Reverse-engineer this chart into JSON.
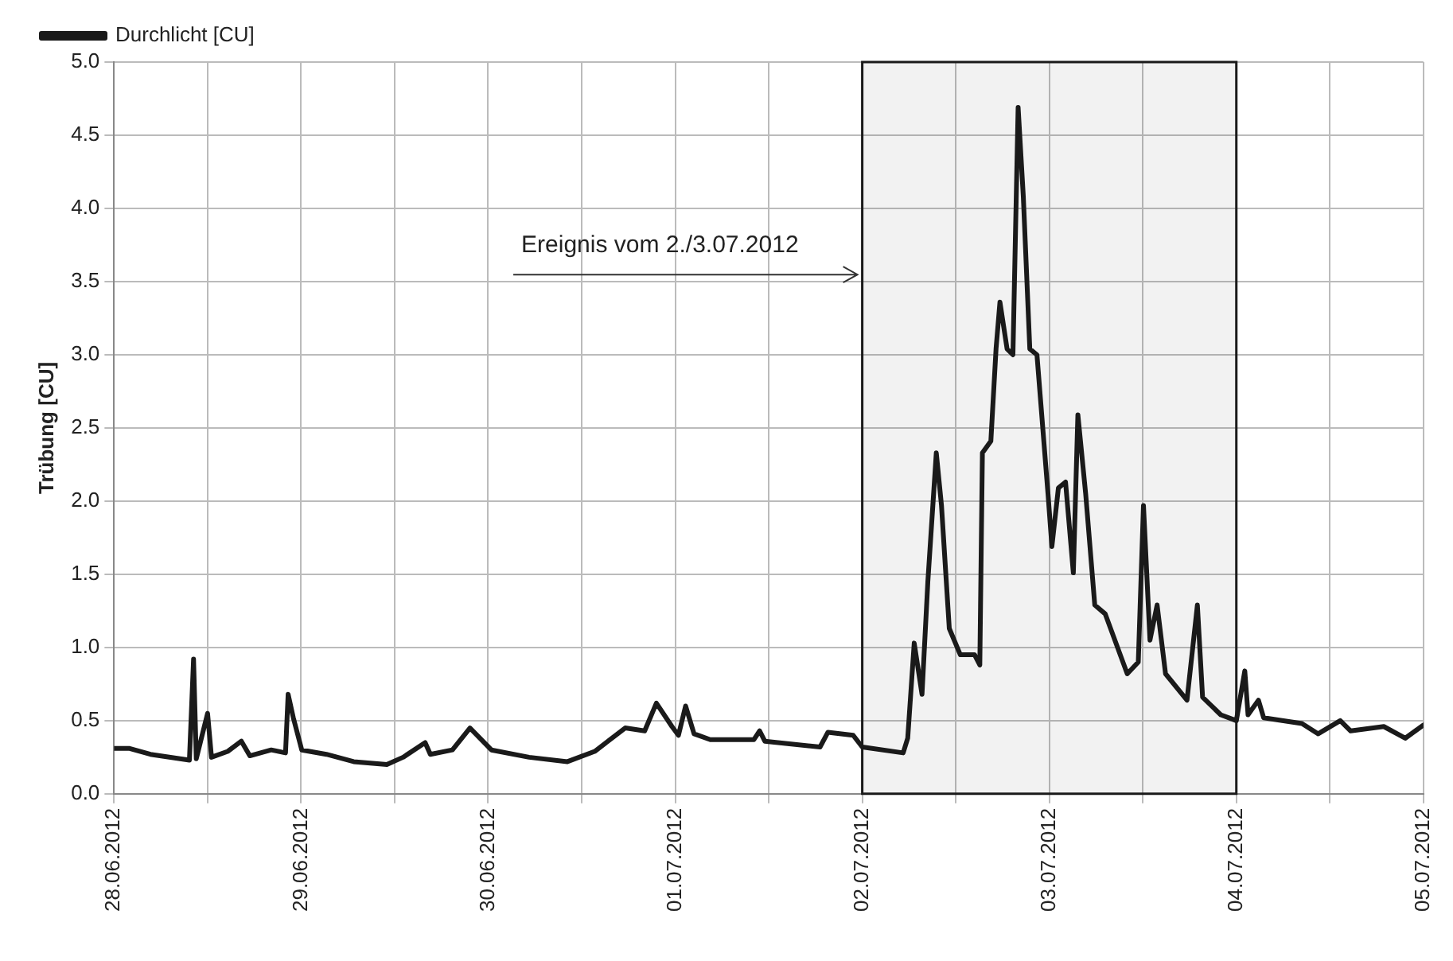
{
  "chart_data": {
    "type": "line",
    "ylabel": "Trübung [CU]",
    "x": [
      "2012-06-28T00:00",
      "2012-06-28T02:00",
      "2012-06-28T04:40",
      "2012-06-28T09:40",
      "2012-06-28T10:12",
      "2012-06-28T10:33",
      "2012-06-28T12:00",
      "2012-06-28T12:30",
      "2012-06-28T14:35",
      "2012-06-28T16:20",
      "2012-06-28T17:25",
      "2012-06-28T20:10",
      "2012-06-28T22:00",
      "2012-06-28T22:20",
      "2012-06-28T23:00",
      "2012-06-29T00:05",
      "2012-06-29T03:15",
      "2012-06-29T06:45",
      "2012-06-29T11:00",
      "2012-06-29T13:05",
      "2012-06-29T15:55",
      "2012-06-29T16:35",
      "2012-06-29T19:25",
      "2012-06-29T21:40",
      "2012-06-30T00:25",
      "2012-06-30T05:15",
      "2012-06-30T10:10",
      "2012-06-30T13:40",
      "2012-06-30T17:35",
      "2012-06-30T20:05",
      "2012-06-30T21:35",
      "2012-06-30T23:35",
      "2012-07-01T00:25",
      "2012-07-01T01:20",
      "2012-07-01T02:25",
      "2012-07-01T04:30",
      "2012-07-01T10:05",
      "2012-07-01T10:50",
      "2012-07-01T11:30",
      "2012-07-01T18:35",
      "2012-07-01T19:35",
      "2012-07-01T22:50",
      "2012-07-02T00:00",
      "2012-07-02T05:15",
      "2012-07-02T05:50",
      "2012-07-02T06:40",
      "2012-07-02T07:40",
      "2012-07-02T08:25",
      "2012-07-02T09:30",
      "2012-07-02T10:10",
      "2012-07-02T11:10",
      "2012-07-02T12:35",
      "2012-07-02T14:25",
      "2012-07-02T15:05",
      "2012-07-02T15:25",
      "2012-07-02T16:30",
      "2012-07-02T17:10",
      "2012-07-02T17:40",
      "2012-07-02T18:35",
      "2012-07-02T19:20",
      "2012-07-02T20:00",
      "2012-07-02T20:40",
      "2012-07-02T21:30",
      "2012-07-02T22:25",
      "2012-07-02T23:50",
      "2012-07-03T00:20",
      "2012-07-03T01:10",
      "2012-07-03T02:05",
      "2012-07-03T03:05",
      "2012-07-03T03:40",
      "2012-07-03T04:40",
      "2012-07-03T05:50",
      "2012-07-03T07:10",
      "2012-07-03T10:00",
      "2012-07-03T11:25",
      "2012-07-03T12:05",
      "2012-07-03T12:55",
      "2012-07-03T13:50",
      "2012-07-03T14:55",
      "2012-07-03T17:40",
      "2012-07-03T19:00",
      "2012-07-03T19:40",
      "2012-07-03T22:00",
      "2012-07-04T00:00",
      "2012-07-04T01:05",
      "2012-07-04T01:30",
      "2012-07-04T02:50",
      "2012-07-04T03:30",
      "2012-07-04T08:25",
      "2012-07-04T10:30",
      "2012-07-04T13:20",
      "2012-07-04T14:40",
      "2012-07-04T18:55",
      "2012-07-04T21:40",
      "2012-07-05T00:00"
    ],
    "series": [
      {
        "name": "Durchlicht [CU]",
        "color": "#1a1a1a",
        "values": [
          0.31,
          0.31,
          0.27,
          0.23,
          0.92,
          0.24,
          0.55,
          0.25,
          0.29,
          0.36,
          0.26,
          0.3,
          0.28,
          0.68,
          0.52,
          0.3,
          0.27,
          0.22,
          0.2,
          0.25,
          0.35,
          0.27,
          0.3,
          0.45,
          0.3,
          0.25,
          0.22,
          0.29,
          0.45,
          0.43,
          0.62,
          0.46,
          0.4,
          0.6,
          0.41,
          0.37,
          0.37,
          0.43,
          0.36,
          0.32,
          0.42,
          0.4,
          0.32,
          0.28,
          0.38,
          1.03,
          0.68,
          1.45,
          2.33,
          1.97,
          1.13,
          0.95,
          0.95,
          0.88,
          2.33,
          2.41,
          3.04,
          3.36,
          3.04,
          3.0,
          4.69,
          4.08,
          3.04,
          3.0,
          2.05,
          1.69,
          2.09,
          2.13,
          1.51,
          2.59,
          2.05,
          1.29,
          1.23,
          0.82,
          0.9,
          1.97,
          1.05,
          1.29,
          0.82,
          0.64,
          1.29,
          0.66,
          0.54,
          0.5,
          0.84,
          0.54,
          0.64,
          0.52,
          0.48,
          0.41,
          0.5,
          0.43,
          0.46,
          0.38,
          0.47
        ]
      }
    ],
    "xlim": [
      "2012-06-28",
      "2012-07-05"
    ],
    "xticks": [
      {
        "value": "2012-06-28",
        "label": "28.06.2012"
      },
      {
        "value": "2012-06-28T12:00",
        "label": null
      },
      {
        "value": "2012-06-29",
        "label": "29.06.2012"
      },
      {
        "value": "2012-06-29T12:00",
        "label": null
      },
      {
        "value": "2012-06-30",
        "label": "30.06.2012"
      },
      {
        "value": "2012-06-30T12:00",
        "label": null
      },
      {
        "value": "2012-07-01",
        "label": "01.07.2012"
      },
      {
        "value": "2012-07-01T12:00",
        "label": null
      },
      {
        "value": "2012-07-02",
        "label": "02.07.2012"
      },
      {
        "value": "2012-07-02T12:00",
        "label": null
      },
      {
        "value": "2012-07-03",
        "label": "03.07.2012"
      },
      {
        "value": "2012-07-03T12:00",
        "label": null
      },
      {
        "value": "2012-07-04",
        "label": "04.07.2012"
      },
      {
        "value": "2012-07-04T12:00",
        "label": null
      },
      {
        "value": "2012-07-05",
        "label": "05.07.2012"
      }
    ],
    "ylim": [
      0,
      5
    ],
    "yticks": [
      {
        "value": 0,
        "label": "0.0"
      },
      {
        "value": 0.5,
        "label": "0.5"
      },
      {
        "value": 1,
        "label": "1.0"
      },
      {
        "value": 1.5,
        "label": "1.5"
      },
      {
        "value": 2,
        "label": "2.0"
      },
      {
        "value": 2.5,
        "label": "2.5"
      },
      {
        "value": 3,
        "label": "3.0"
      },
      {
        "value": 3.5,
        "label": "3.5"
      },
      {
        "value": 4,
        "label": "4.0"
      },
      {
        "value": 4.5,
        "label": "4.5"
      },
      {
        "value": 5,
        "label": "5.0"
      }
    ],
    "bands": [
      {
        "axis": "x",
        "from": "2012-07-02",
        "to": "2012-07-04",
        "label": "Ereignis vom 2./3.07.2012",
        "color": "#1a1a1a"
      }
    ],
    "grid": true,
    "legend": "top left",
    "marker": "none",
    "line_style": "solid"
  }
}
